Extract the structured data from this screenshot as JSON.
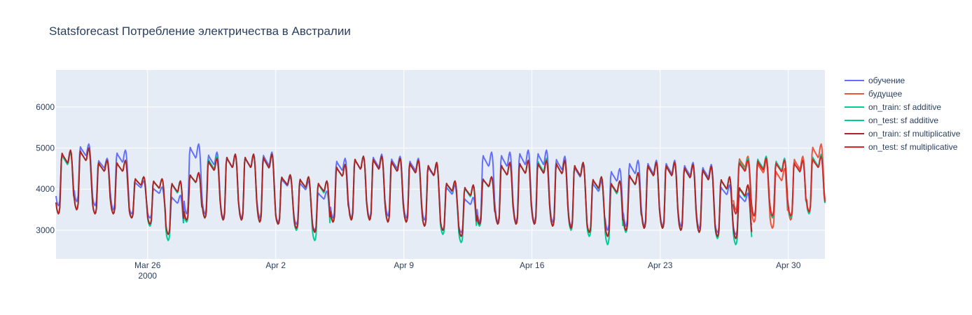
{
  "chart_data": {
    "type": "line",
    "title": "Statsforecast Потребление электричества в Австралии",
    "xlabel": "",
    "ylabel": "",
    "x_start": "2000-03-21",
    "x_end": "2000-05-02",
    "x_ticks": [
      {
        "date": "2000-03-26",
        "label": "Mar 26",
        "sublabel": "2000"
      },
      {
        "date": "2000-04-02",
        "label": "Apr 2",
        "sublabel": ""
      },
      {
        "date": "2000-04-09",
        "label": "Apr 9",
        "sublabel": ""
      },
      {
        "date": "2000-04-16",
        "label": "Apr 16",
        "sublabel": ""
      },
      {
        "date": "2000-04-23",
        "label": "Apr 23",
        "sublabel": ""
      },
      {
        "date": "2000-04-30",
        "label": "Apr 30",
        "sublabel": ""
      }
    ],
    "ylim": [
      2300,
      6900
    ],
    "y_ticks": [
      3000,
      4000,
      5000,
      6000
    ],
    "grid": true,
    "legend_position": "right",
    "series": [
      {
        "name": "обучение",
        "color": "#636efa",
        "start": "2000-03-21",
        "end": "2000-04-27",
        "daily_peak": [
          4900,
          5100,
          4750,
          4950,
          4200,
          4050,
          3850,
          5100,
          4900,
          4850,
          4850,
          4900,
          4300,
          4200,
          3950,
          4750,
          4800,
          4850,
          4800,
          4750,
          4600,
          4100,
          3800,
          4900,
          4900,
          4950,
          4950,
          4800,
          4600,
          4200,
          4500,
          4700,
          4700,
          4700,
          4650,
          4600,
          4100,
          3900,
          3950,
          4900
        ],
        "daily_trough": [
          3600,
          3700,
          3600,
          3500,
          3400,
          3300,
          2900,
          3400,
          3400,
          3300,
          3300,
          3300,
          3200,
          3150,
          3000,
          3300,
          3300,
          3300,
          3350,
          3300,
          3250,
          3000,
          2950,
          3200,
          3200,
          3200,
          3200,
          3200,
          3100,
          2950,
          3000,
          3100,
          3100,
          3100,
          3100,
          3050,
          2950,
          2900,
          2950,
          3200
        ]
      },
      {
        "name": "будущее",
        "color": "#ef553b",
        "start": "2000-04-27",
        "end": "2000-05-01",
        "daily_peak": [
          4800,
          4700,
          4500,
          4800,
          5100
        ],
        "daily_trough": [
          3500,
          3200,
          3050,
          3250,
          3450
        ]
      },
      {
        "name": "on_train: sf additive",
        "color": "#00cc96",
        "start": "2000-03-21",
        "end": "2000-04-27",
        "daily_peak": [
          4900,
          5000,
          4700,
          4700,
          4300,
          4250,
          4200,
          4400,
          4800,
          4850,
          4850,
          4850,
          4350,
          4300,
          4200,
          4600,
          4800,
          4800,
          4750,
          4700,
          4650,
          4200,
          4100,
          4300,
          4650,
          4700,
          4750,
          4700,
          4650,
          4300,
          4200,
          4400,
          4650,
          4650,
          4600,
          4550,
          4300,
          4100,
          3900,
          4200
        ],
        "daily_trough": [
          3400,
          3500,
          3400,
          3400,
          3300,
          3100,
          2750,
          3200,
          3300,
          3250,
          3250,
          3200,
          3150,
          3000,
          2750,
          3200,
          3250,
          3250,
          3200,
          3200,
          3100,
          2900,
          2700,
          3100,
          3150,
          3150,
          3150,
          3100,
          3000,
          2850,
          2650,
          2950,
          3050,
          3050,
          3000,
          2950,
          2800,
          2650,
          2600,
          2900
        ]
      },
      {
        "name": "on_test: sf additive",
        "color": "#00cc96",
        "start": "2000-04-27",
        "end": "2000-05-01",
        "daily_peak": [
          4750,
          4800,
          4750,
          4700,
          4850
        ],
        "daily_trough": [
          3400,
          3350,
          3300,
          3300,
          3400
        ]
      },
      {
        "name": "on_train: sf multiplicative",
        "color": "#b22222",
        "start": "2000-03-21",
        "end": "2000-04-27",
        "daily_peak": [
          4950,
          5000,
          4700,
          4700,
          4300,
          4250,
          4200,
          4400,
          4750,
          4850,
          4850,
          4850,
          4350,
          4300,
          4200,
          4600,
          4800,
          4800,
          4750,
          4700,
          4650,
          4200,
          4100,
          4300,
          4650,
          4700,
          4700,
          4700,
          4650,
          4300,
          4200,
          4400,
          4650,
          4650,
          4600,
          4550,
          4300,
          4100,
          3900,
          4200
        ],
        "daily_trough": [
          3400,
          3500,
          3400,
          3400,
          3300,
          3150,
          2900,
          3250,
          3300,
          3250,
          3250,
          3200,
          3150,
          3050,
          2950,
          3200,
          3250,
          3250,
          3200,
          3200,
          3100,
          3000,
          2850,
          3150,
          3150,
          3150,
          3150,
          3100,
          3050,
          2950,
          2850,
          3000,
          3050,
          3050,
          3000,
          2950,
          2850,
          2800,
          2750,
          2950
        ]
      },
      {
        "name": "on_test: sf multiplicative",
        "color": "#d62728",
        "start": "2000-04-27",
        "end": "2000-05-01",
        "daily_peak": [
          4700,
          4750,
          4700,
          4700,
          4800
        ],
        "daily_trough": [
          3400,
          3350,
          3350,
          3350,
          3450
        ]
      }
    ]
  }
}
